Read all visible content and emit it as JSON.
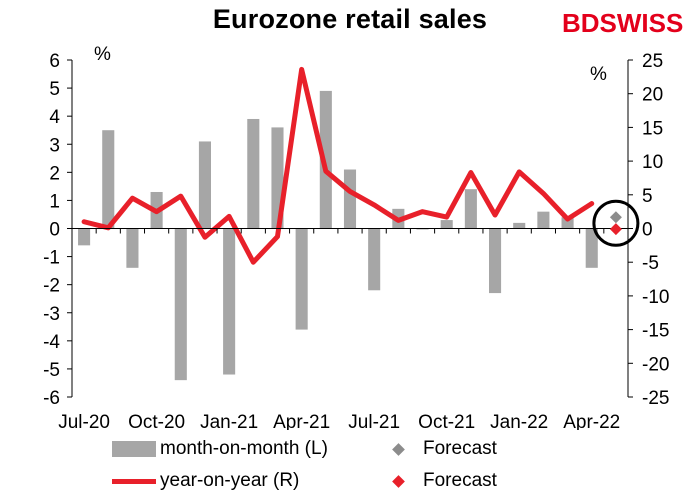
{
  "title": "Eurozone retail sales",
  "brand": {
    "name": "BDSWISS",
    "accent": "#e3001b"
  },
  "colors": {
    "bar": "#a6a6a6",
    "line": "#e8202a",
    "forecast_bar": "#8c8c8c",
    "forecast_line": "#e8202a"
  },
  "chart_data": {
    "type": "bar+line",
    "categories": [
      "Jul-20",
      "Aug-20",
      "Sep-20",
      "Oct-20",
      "Nov-20",
      "Dec-20",
      "Jan-21",
      "Feb-21",
      "Mar-21",
      "Apr-21",
      "May-21",
      "Jun-21",
      "Jul-21",
      "Aug-21",
      "Sep-21",
      "Oct-21",
      "Nov-21",
      "Dec-21",
      "Jan-22",
      "Feb-22",
      "Mar-22",
      "Apr-22",
      "May-22"
    ],
    "x_tick_labels": [
      "Jul-20",
      "Oct-20",
      "Jan-21",
      "Apr-21",
      "Jul-21",
      "Oct-21",
      "Jan-22",
      "Apr-22"
    ],
    "left_axis": {
      "unit": "%",
      "ylim": [
        -6,
        6
      ],
      "ticks": [
        6,
        5,
        4,
        3,
        2,
        1,
        0,
        -1,
        -2,
        -3,
        -4,
        -5,
        -6
      ]
    },
    "right_axis": {
      "unit": "%",
      "ylim": [
        -25,
        25
      ],
      "ticks": [
        25,
        20,
        15,
        10,
        5,
        0,
        -5,
        -10,
        -15,
        -20,
        -25
      ]
    },
    "series": [
      {
        "name": "month-on-month (L)",
        "type": "bar",
        "axis": "left",
        "values": [
          -0.6,
          3.5,
          -1.4,
          1.3,
          -5.4,
          3.1,
          -5.2,
          3.9,
          3.6,
          -3.6,
          4.9,
          2.1,
          -2.2,
          0.7,
          0.0,
          0.3,
          1.4,
          -2.3,
          0.2,
          0.6,
          0.4,
          -1.4,
          null
        ]
      },
      {
        "name": "year-on-year (R)",
        "type": "line",
        "axis": "right",
        "values": [
          1.0,
          0.1,
          4.5,
          2.5,
          4.8,
          -1.3,
          1.8,
          -5.0,
          -1.2,
          23.6,
          8.5,
          5.5,
          3.5,
          1.2,
          2.5,
          1.7,
          8.3,
          2.0,
          8.4,
          5.2,
          1.4,
          3.7,
          null
        ]
      },
      {
        "name": "Forecast",
        "type": "marker",
        "axis": "left",
        "category": "May-22",
        "value": 0.4
      },
      {
        "name": "Forecast",
        "type": "marker",
        "axis": "right",
        "category": "May-22",
        "value": -0.1
      }
    ],
    "annotations": [
      {
        "type": "circle",
        "category": "May-22"
      }
    ],
    "grid": false,
    "legend_position": "bottom"
  },
  "legend": {
    "bar_label": "month-on-month (L)",
    "line_label": "year-on-year (R)",
    "forecast_bar_label": "Forecast",
    "forecast_line_label": "Forecast"
  }
}
